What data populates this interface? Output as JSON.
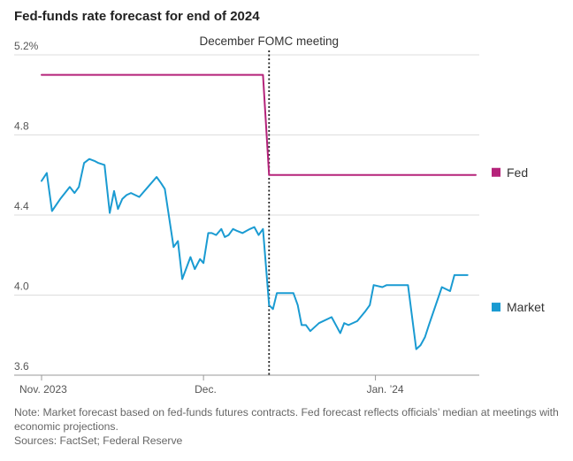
{
  "title": "Fed-funds rate forecast for end of 2024",
  "annotation": "December FOMC meeting",
  "note": "Note: Market forecast based on fed-funds futures contracts. Fed forecast reflects officials’ median at meetings with economic projections.",
  "sources": "Sources: FactSet; Federal Reserve",
  "colors": {
    "fed": "#b5237a",
    "market": "#1a9bd2",
    "grid": "#dddddd",
    "axis": "#999999",
    "text": "#555555"
  },
  "chart_data": {
    "type": "line",
    "title": "Fed-funds rate forecast for end of 2024",
    "xlabel": "",
    "ylabel": "",
    "x_range": [
      0,
      100
    ],
    "ylim": [
      3.6,
      5.2
    ],
    "y_ticks": [
      {
        "v": 5.2,
        "label": "5.2%"
      },
      {
        "v": 4.8,
        "label": "4.8"
      },
      {
        "v": 4.4,
        "label": "4.4"
      },
      {
        "v": 4.0,
        "label": "4.0"
      },
      {
        "v": 3.6,
        "label": "3.6"
      }
    ],
    "x_ticks": [
      {
        "x": 0,
        "label": "Nov. 2023"
      },
      {
        "x": 37.3,
        "label": "Dec."
      },
      {
        "x": 76.9,
        "label": "Jan. ’24"
      }
    ],
    "grid": true,
    "legend": "right",
    "event_x": 52.4,
    "series": [
      {
        "name": "Fed",
        "x": [
          0,
          51.0,
          52.4,
          100
        ],
        "y": [
          5.1,
          5.1,
          4.6,
          4.6
        ]
      },
      {
        "name": "Market",
        "x": [
          0,
          1.2,
          2.4,
          4.3,
          6.5,
          7.6,
          8.6,
          9.8,
          11.0,
          12.2,
          13.1,
          14.5,
          15.7,
          16.7,
          17.6,
          18.6,
          19.6,
          20.6,
          22.5,
          24.5,
          26.5,
          27.5,
          28.4,
          30.4,
          31.4,
          32.4,
          34.3,
          35.3,
          36.5,
          37.3,
          38.4,
          39.2,
          40.2,
          41.4,
          42.2,
          43.1,
          44.1,
          45.1,
          46.3,
          47.1,
          48.0,
          49.0,
          50.0,
          51.0,
          52.4,
          53.3,
          54.2,
          56.1,
          58.0,
          59.0,
          59.9,
          60.9,
          61.9,
          63.9,
          66.8,
          68.8,
          69.7,
          70.7,
          72.7,
          74.6,
          75.6,
          76.5,
          78.5,
          79.5,
          80.5,
          82.4,
          84.4,
          86.3,
          87.3,
          88.3,
          89.2,
          92.2,
          94.1,
          95.1,
          96.1,
          97.1,
          98.1
        ],
        "y": [
          4.57,
          4.61,
          4.42,
          4.48,
          4.54,
          4.51,
          4.54,
          4.66,
          4.68,
          4.67,
          4.66,
          4.65,
          4.41,
          4.52,
          4.43,
          4.48,
          4.5,
          4.51,
          4.49,
          4.54,
          4.59,
          4.56,
          4.53,
          4.24,
          4.27,
          4.08,
          4.19,
          4.13,
          4.18,
          4.16,
          4.31,
          4.31,
          4.3,
          4.33,
          4.29,
          4.3,
          4.33,
          4.32,
          4.31,
          4.32,
          4.33,
          4.34,
          4.3,
          4.33,
          3.95,
          3.93,
          4.01,
          4.01,
          4.01,
          3.95,
          3.85,
          3.85,
          3.82,
          3.86,
          3.89,
          3.81,
          3.86,
          3.85,
          3.87,
          3.92,
          3.95,
          4.05,
          4.04,
          4.05,
          4.05,
          4.05,
          4.05,
          3.73,
          3.75,
          3.79,
          3.85,
          4.04,
          4.02,
          4.1,
          4.1,
          4.1,
          4.1
        ]
      }
    ]
  }
}
